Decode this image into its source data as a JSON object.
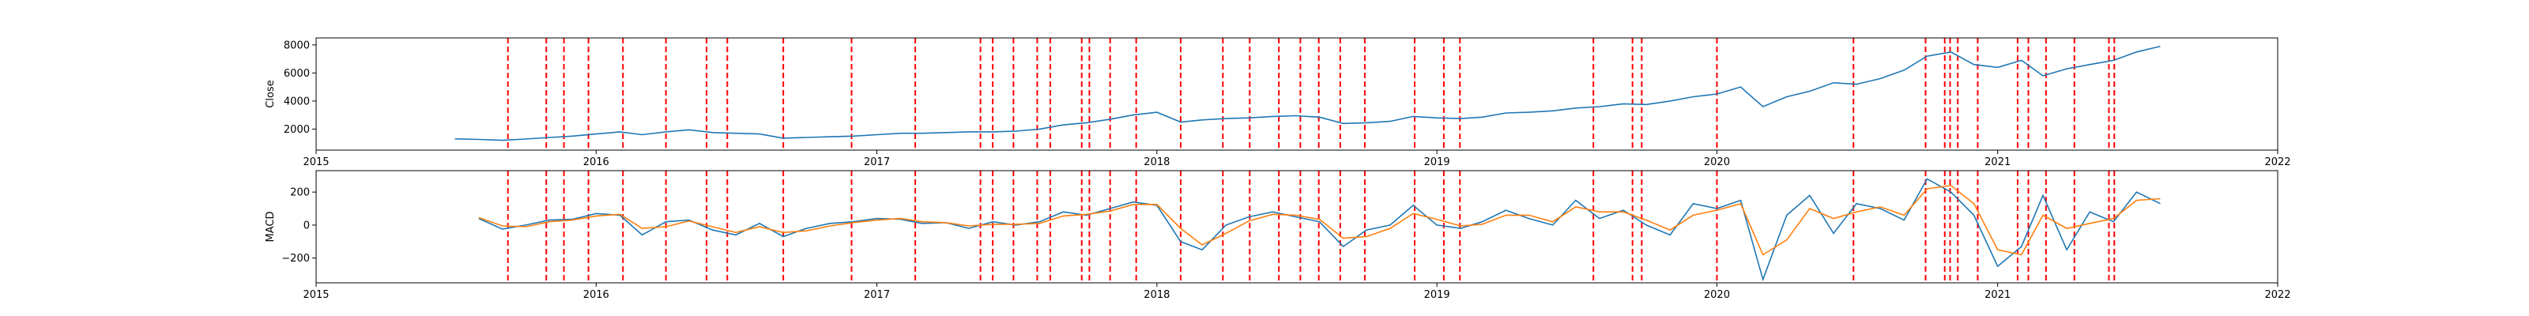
{
  "chart_data": [
    {
      "type": "line",
      "ylabel": "Close",
      "xlim": [
        "2015-01-01",
        "2022-01-01"
      ],
      "ylim": [
        500,
        8500
      ],
      "x_ticks": [
        "2015",
        "2016",
        "2017",
        "2018",
        "2019",
        "2020",
        "2021",
        "2022"
      ],
      "y_ticks": [
        2000,
        4000,
        6000,
        8000
      ],
      "grid": false,
      "series": [
        {
          "color": "#1f77b4",
          "points": [
            [
              "2015-07-01",
              1300
            ],
            [
              "2015-08-01",
              1260
            ],
            [
              "2015-09-01",
              1200
            ],
            [
              "2015-10-01",
              1290
            ],
            [
              "2015-11-01",
              1400
            ],
            [
              "2015-12-01",
              1500
            ],
            [
              "2016-01-01",
              1650
            ],
            [
              "2016-02-01",
              1800
            ],
            [
              "2016-03-01",
              1600
            ],
            [
              "2016-04-01",
              1800
            ],
            [
              "2016-05-01",
              1950
            ],
            [
              "2016-06-01",
              1750
            ],
            [
              "2016-07-01",
              1700
            ],
            [
              "2016-08-01",
              1650
            ],
            [
              "2016-09-01",
              1350
            ],
            [
              "2016-10-01",
              1400
            ],
            [
              "2016-11-01",
              1450
            ],
            [
              "2016-12-01",
              1500
            ],
            [
              "2017-01-01",
              1600
            ],
            [
              "2017-02-01",
              1700
            ],
            [
              "2017-03-01",
              1700
            ],
            [
              "2017-04-01",
              1750
            ],
            [
              "2017-05-01",
              1800
            ],
            [
              "2017-06-01",
              1800
            ],
            [
              "2017-07-01",
              1850
            ],
            [
              "2017-08-01",
              2000
            ],
            [
              "2017-09-01",
              2300
            ],
            [
              "2017-10-01",
              2450
            ],
            [
              "2017-11-01",
              2700
            ],
            [
              "2017-12-01",
              3000
            ],
            [
              "2018-01-01",
              3200
            ],
            [
              "2018-02-01",
              2500
            ],
            [
              "2018-03-01",
              2650
            ],
            [
              "2018-04-01",
              2750
            ],
            [
              "2018-05-01",
              2800
            ],
            [
              "2018-06-01",
              2900
            ],
            [
              "2018-07-01",
              2950
            ],
            [
              "2018-08-01",
              2850
            ],
            [
              "2018-09-01",
              2400
            ],
            [
              "2018-10-01",
              2450
            ],
            [
              "2018-11-01",
              2550
            ],
            [
              "2018-12-01",
              2900
            ],
            [
              "2019-01-01",
              2800
            ],
            [
              "2019-02-01",
              2750
            ],
            [
              "2019-03-01",
              2850
            ],
            [
              "2019-04-01",
              3150
            ],
            [
              "2019-05-01",
              3200
            ],
            [
              "2019-06-01",
              3300
            ],
            [
              "2019-07-01",
              3500
            ],
            [
              "2019-08-01",
              3600
            ],
            [
              "2019-09-01",
              3800
            ],
            [
              "2019-10-01",
              3750
            ],
            [
              "2019-11-01",
              4000
            ],
            [
              "2019-12-01",
              4300
            ],
            [
              "2020-01-01",
              4500
            ],
            [
              "2020-02-01",
              5000
            ],
            [
              "2020-03-01",
              3600
            ],
            [
              "2020-04-01",
              4300
            ],
            [
              "2020-05-01",
              4700
            ],
            [
              "2020-06-01",
              5300
            ],
            [
              "2020-07-01",
              5200
            ],
            [
              "2020-08-01",
              5600
            ],
            [
              "2020-09-01",
              6200
            ],
            [
              "2020-10-01",
              7200
            ],
            [
              "2020-11-01",
              7500
            ],
            [
              "2020-12-01",
              6600
            ],
            [
              "2021-01-01",
              6400
            ],
            [
              "2021-02-01",
              6900
            ],
            [
              "2021-03-01",
              5800
            ],
            [
              "2021-04-01",
              6300
            ],
            [
              "2021-05-01",
              6600
            ],
            [
              "2021-06-01",
              6900
            ],
            [
              "2021-07-01",
              7500
            ],
            [
              "2021-08-01",
              7900
            ]
          ]
        }
      ],
      "vlines_color": "#ff0000"
    },
    {
      "type": "line",
      "ylabel": "MACD",
      "xlim": [
        "2015-01-01",
        "2022-01-01"
      ],
      "ylim": [
        -350,
        330
      ],
      "x_ticks": [
        "2015",
        "2016",
        "2017",
        "2018",
        "2019",
        "2020",
        "2021",
        "2022"
      ],
      "y_ticks": [
        -200,
        0,
        200
      ],
      "grid": false,
      "series": [
        {
          "color": "#1f77b4",
          "points": [
            [
              "2015-08-01",
              40
            ],
            [
              "2015-09-01",
              -25
            ],
            [
              "2015-10-01",
              0
            ],
            [
              "2015-11-01",
              30
            ],
            [
              "2015-12-01",
              35
            ],
            [
              "2016-01-01",
              70
            ],
            [
              "2016-02-01",
              60
            ],
            [
              "2016-03-01",
              -60
            ],
            [
              "2016-04-01",
              20
            ],
            [
              "2016-05-01",
              30
            ],
            [
              "2016-06-01",
              -30
            ],
            [
              "2016-07-01",
              -60
            ],
            [
              "2016-08-01",
              10
            ],
            [
              "2016-09-01",
              -70
            ],
            [
              "2016-10-01",
              -20
            ],
            [
              "2016-11-01",
              10
            ],
            [
              "2016-12-01",
              20
            ],
            [
              "2017-01-01",
              40
            ],
            [
              "2017-02-01",
              35
            ],
            [
              "2017-03-01",
              10
            ],
            [
              "2017-04-01",
              15
            ],
            [
              "2017-05-01",
              -20
            ],
            [
              "2017-06-01",
              20
            ],
            [
              "2017-07-01",
              0
            ],
            [
              "2017-08-01",
              20
            ],
            [
              "2017-09-01",
              80
            ],
            [
              "2017-10-01",
              60
            ],
            [
              "2017-11-01",
              100
            ],
            [
              "2017-12-01",
              140
            ],
            [
              "2018-01-01",
              120
            ],
            [
              "2018-02-01",
              -100
            ],
            [
              "2018-03-01",
              -150
            ],
            [
              "2018-04-01",
              0
            ],
            [
              "2018-05-01",
              50
            ],
            [
              "2018-06-01",
              80
            ],
            [
              "2018-07-01",
              50
            ],
            [
              "2018-08-01",
              20
            ],
            [
              "2018-09-01",
              -130
            ],
            [
              "2018-10-01",
              -30
            ],
            [
              "2018-11-01",
              0
            ],
            [
              "2018-12-01",
              120
            ],
            [
              "2019-01-01",
              0
            ],
            [
              "2019-02-01",
              -20
            ],
            [
              "2019-03-01",
              20
            ],
            [
              "2019-04-01",
              90
            ],
            [
              "2019-05-01",
              40
            ],
            [
              "2019-06-01",
              0
            ],
            [
              "2019-07-01",
              150
            ],
            [
              "2019-08-01",
              40
            ],
            [
              "2019-09-01",
              90
            ],
            [
              "2019-10-01",
              0
            ],
            [
              "2019-11-01",
              -60
            ],
            [
              "2019-12-01",
              130
            ],
            [
              "2020-01-01",
              100
            ],
            [
              "2020-02-01",
              150
            ],
            [
              "2020-03-01",
              -330
            ],
            [
              "2020-04-01",
              60
            ],
            [
              "2020-05-01",
              180
            ],
            [
              "2020-06-01",
              -50
            ],
            [
              "2020-07-01",
              130
            ],
            [
              "2020-08-01",
              100
            ],
            [
              "2020-09-01",
              30
            ],
            [
              "2020-10-01",
              280
            ],
            [
              "2020-11-01",
              200
            ],
            [
              "2020-12-01",
              60
            ],
            [
              "2021-01-01",
              -250
            ],
            [
              "2021-02-01",
              -130
            ],
            [
              "2021-03-01",
              180
            ],
            [
              "2021-04-01",
              -150
            ],
            [
              "2021-05-01",
              80
            ],
            [
              "2021-06-01",
              20
            ],
            [
              "2021-07-01",
              200
            ],
            [
              "2021-08-01",
              130
            ]
          ]
        },
        {
          "color": "#ff7f0e",
          "points": [
            [
              "2015-08-01",
              45
            ],
            [
              "2015-09-01",
              -5
            ],
            [
              "2015-10-01",
              -10
            ],
            [
              "2015-11-01",
              20
            ],
            [
              "2015-12-01",
              30
            ],
            [
              "2016-01-01",
              55
            ],
            [
              "2016-02-01",
              65
            ],
            [
              "2016-03-01",
              -20
            ],
            [
              "2016-04-01",
              -10
            ],
            [
              "2016-05-01",
              25
            ],
            [
              "2016-06-01",
              -10
            ],
            [
              "2016-07-01",
              -45
            ],
            [
              "2016-08-01",
              -10
            ],
            [
              "2016-09-01",
              -45
            ],
            [
              "2016-10-01",
              -35
            ],
            [
              "2016-11-01",
              -5
            ],
            [
              "2016-12-01",
              15
            ],
            [
              "2017-01-01",
              30
            ],
            [
              "2017-02-01",
              40
            ],
            [
              "2017-03-01",
              20
            ],
            [
              "2017-04-01",
              15
            ],
            [
              "2017-05-01",
              -5
            ],
            [
              "2017-06-01",
              5
            ],
            [
              "2017-07-01",
              5
            ],
            [
              "2017-08-01",
              10
            ],
            [
              "2017-09-01",
              55
            ],
            [
              "2017-10-01",
              65
            ],
            [
              "2017-11-01",
              85
            ],
            [
              "2017-12-01",
              125
            ],
            [
              "2018-01-01",
              125
            ],
            [
              "2018-02-01",
              -20
            ],
            [
              "2018-03-01",
              -120
            ],
            [
              "2018-04-01",
              -50
            ],
            [
              "2018-05-01",
              25
            ],
            [
              "2018-06-01",
              65
            ],
            [
              "2018-07-01",
              60
            ],
            [
              "2018-08-01",
              35
            ],
            [
              "2018-09-01",
              -80
            ],
            [
              "2018-10-01",
              -70
            ],
            [
              "2018-11-01",
              -20
            ],
            [
              "2018-12-01",
              70
            ],
            [
              "2019-01-01",
              35
            ],
            [
              "2019-02-01",
              -5
            ],
            [
              "2019-03-01",
              5
            ],
            [
              "2019-04-01",
              60
            ],
            [
              "2019-05-01",
              60
            ],
            [
              "2019-06-01",
              20
            ],
            [
              "2019-07-01",
              110
            ],
            [
              "2019-08-01",
              80
            ],
            [
              "2019-09-01",
              80
            ],
            [
              "2019-10-01",
              30
            ],
            [
              "2019-11-01",
              -30
            ],
            [
              "2019-12-01",
              60
            ],
            [
              "2020-01-01",
              90
            ],
            [
              "2020-02-01",
              130
            ],
            [
              "2020-03-01",
              -180
            ],
            [
              "2020-04-01",
              -90
            ],
            [
              "2020-05-01",
              100
            ],
            [
              "2020-06-01",
              40
            ],
            [
              "2020-07-01",
              80
            ],
            [
              "2020-08-01",
              110
            ],
            [
              "2020-09-01",
              60
            ],
            [
              "2020-10-01",
              220
            ],
            [
              "2020-11-01",
              240
            ],
            [
              "2020-12-01",
              130
            ],
            [
              "2021-01-01",
              -150
            ],
            [
              "2021-02-01",
              -180
            ],
            [
              "2021-03-01",
              60
            ],
            [
              "2021-04-01",
              -20
            ],
            [
              "2021-05-01",
              10
            ],
            [
              "2021-06-01",
              40
            ],
            [
              "2021-07-01",
              150
            ],
            [
              "2021-08-01",
              160
            ]
          ]
        }
      ],
      "vlines_color": "#ff0000"
    }
  ],
  "event_dates": [
    "2015-09-08",
    "2015-10-28",
    "2015-11-20",
    "2015-12-22",
    "2016-02-05",
    "2016-04-01",
    "2016-05-24",
    "2016-06-20",
    "2016-09-01",
    "2016-11-29",
    "2017-02-20",
    "2017-05-16",
    "2017-06-01",
    "2017-06-28",
    "2017-07-29",
    "2017-08-15",
    "2017-09-25",
    "2017-10-05",
    "2017-11-01",
    "2017-12-05",
    "2018-02-01",
    "2018-03-28",
    "2018-05-02",
    "2018-06-09",
    "2018-07-07",
    "2018-07-31",
    "2018-08-28",
    "2018-09-29",
    "2018-12-03",
    "2019-01-10",
    "2019-01-31",
    "2019-07-24",
    "2019-09-13",
    "2019-09-25",
    "2020-01-01",
    "2020-06-27",
    "2020-09-29",
    "2020-10-24",
    "2020-10-31",
    "2020-11-10",
    "2020-12-06",
    "2021-01-27",
    "2021-02-10",
    "2021-03-05",
    "2021-04-11",
    "2021-05-26",
    "2021-06-02"
  ]
}
